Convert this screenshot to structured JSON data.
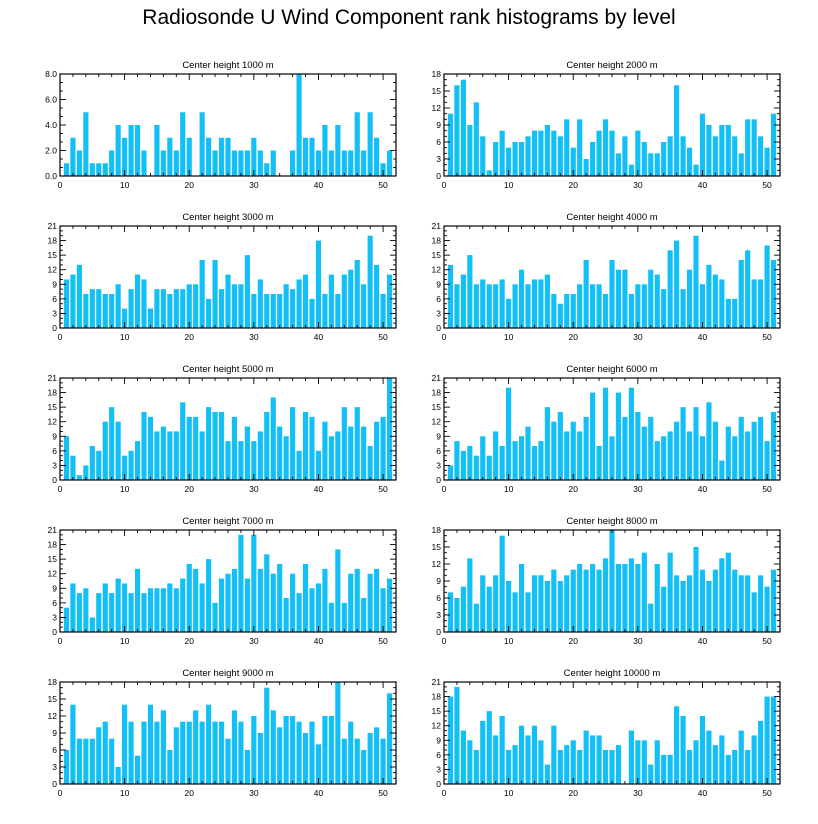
{
  "title": "Radiosonde U Wind Component rank histograms by level",
  "colors": {
    "bar": "#13c0f5",
    "axis": "#000000"
  },
  "chart_data": [
    {
      "type": "bar",
      "title": "Center height 1000 m",
      "x": [
        0,
        1,
        2,
        3,
        4,
        5,
        6,
        7,
        8,
        9,
        10,
        11,
        12,
        13,
        14,
        15,
        16,
        17,
        18,
        19,
        20,
        21,
        22,
        23,
        24,
        25,
        26,
        27,
        28,
        29,
        30,
        31,
        32,
        33,
        34,
        35,
        36,
        37,
        38,
        39,
        40,
        41,
        42,
        43,
        44,
        45,
        46,
        47,
        48,
        49,
        50,
        51
      ],
      "values": [
        0,
        1,
        3,
        2,
        5,
        1,
        1,
        1,
        2,
        4,
        3,
        4,
        4,
        2,
        0,
        4,
        2,
        3,
        2,
        5,
        3,
        0,
        5,
        3,
        2,
        3,
        3,
        2,
        2,
        2,
        3,
        2,
        1,
        2,
        0,
        0,
        2,
        8,
        3,
        3,
        2,
        4,
        2,
        4,
        2,
        2,
        5,
        2,
        5,
        3,
        1,
        2
      ],
      "xlim": [
        0,
        52
      ],
      "ylim": [
        0,
        8
      ],
      "xticks": [
        "0",
        "10",
        "20",
        "30",
        "40",
        "50"
      ],
      "yticks": [
        "0.0",
        "2.0",
        "4.0",
        "6.0",
        "8.0"
      ]
    },
    {
      "type": "bar",
      "title": "Center height 2000 m",
      "x": [
        0,
        1,
        2,
        3,
        4,
        5,
        6,
        7,
        8,
        9,
        10,
        11,
        12,
        13,
        14,
        15,
        16,
        17,
        18,
        19,
        20,
        21,
        22,
        23,
        24,
        25,
        26,
        27,
        28,
        29,
        30,
        31,
        32,
        33,
        34,
        35,
        36,
        37,
        38,
        39,
        40,
        41,
        42,
        43,
        44,
        45,
        46,
        47,
        48,
        49,
        50,
        51
      ],
      "values": [
        0,
        11,
        16,
        17,
        9,
        13,
        7,
        1,
        6,
        8,
        5,
        6,
        6,
        7,
        8,
        8,
        9,
        8,
        7,
        10,
        5,
        10,
        3,
        6,
        8,
        10,
        8,
        4,
        7,
        2,
        8,
        6,
        4,
        4,
        6,
        7,
        16,
        7,
        5,
        2,
        11,
        9,
        7,
        9,
        9,
        7,
        4,
        10,
        10,
        7,
        5,
        11
      ],
      "xlim": [
        0,
        52
      ],
      "ylim": [
        0,
        18
      ],
      "xticks": [
        "0",
        "10",
        "20",
        "30",
        "40",
        "50"
      ],
      "yticks": [
        "0",
        "3",
        "6",
        "9",
        "12",
        "15",
        "18"
      ]
    },
    {
      "type": "bar",
      "title": "Center height 3000 m",
      "x": [
        0,
        1,
        2,
        3,
        4,
        5,
        6,
        7,
        8,
        9,
        10,
        11,
        12,
        13,
        14,
        15,
        16,
        17,
        18,
        19,
        20,
        21,
        22,
        23,
        24,
        25,
        26,
        27,
        28,
        29,
        30,
        31,
        32,
        33,
        34,
        35,
        36,
        37,
        38,
        39,
        40,
        41,
        42,
        43,
        44,
        45,
        46,
        47,
        48,
        49,
        50,
        51
      ],
      "values": [
        0,
        10,
        11,
        13,
        7,
        8,
        8,
        7,
        7,
        9,
        4,
        8,
        11,
        10,
        4,
        8,
        8,
        7,
        8,
        8,
        9,
        9,
        14,
        6,
        14,
        8,
        11,
        9,
        9,
        15,
        7,
        10,
        7,
        7,
        7,
        9,
        8,
        10,
        11,
        6,
        18,
        7,
        11,
        7,
        11,
        12,
        14,
        9,
        19,
        13,
        7,
        11
      ],
      "xlim": [
        0,
        52
      ],
      "ylim": [
        0,
        21
      ],
      "xticks": [
        "0",
        "10",
        "20",
        "30",
        "40",
        "50"
      ],
      "yticks": [
        "0",
        "3",
        "6",
        "9",
        "12",
        "15",
        "18",
        "21"
      ]
    },
    {
      "type": "bar",
      "title": "Center height 4000 m",
      "x": [
        0,
        1,
        2,
        3,
        4,
        5,
        6,
        7,
        8,
        9,
        10,
        11,
        12,
        13,
        14,
        15,
        16,
        17,
        18,
        19,
        20,
        21,
        22,
        23,
        24,
        25,
        26,
        27,
        28,
        29,
        30,
        31,
        32,
        33,
        34,
        35,
        36,
        37,
        38,
        39,
        40,
        41,
        42,
        43,
        44,
        45,
        46,
        47,
        48,
        49,
        50,
        51
      ],
      "values": [
        0,
        13,
        9,
        11,
        15,
        9,
        10,
        9,
        9,
        10,
        6,
        9,
        12,
        9,
        10,
        10,
        11,
        7,
        5,
        7,
        7,
        9,
        14,
        9,
        9,
        7,
        14,
        12,
        12,
        7,
        9,
        9,
        12,
        11,
        8,
        16,
        18,
        8,
        12,
        19,
        9,
        13,
        11,
        10,
        6,
        6,
        14,
        16,
        10,
        10,
        17,
        14
      ],
      "xlim": [
        0,
        52
      ],
      "ylim": [
        0,
        21
      ],
      "xticks": [
        "0",
        "10",
        "20",
        "30",
        "40",
        "50"
      ],
      "yticks": [
        "0",
        "3",
        "6",
        "9",
        "12",
        "15",
        "18",
        "21"
      ]
    },
    {
      "type": "bar",
      "title": "Center height 5000 m",
      "x": [
        0,
        1,
        2,
        3,
        4,
        5,
        6,
        7,
        8,
        9,
        10,
        11,
        12,
        13,
        14,
        15,
        16,
        17,
        18,
        19,
        20,
        21,
        22,
        23,
        24,
        25,
        26,
        27,
        28,
        29,
        30,
        31,
        32,
        33,
        34,
        35,
        36,
        37,
        38,
        39,
        40,
        41,
        42,
        43,
        44,
        45,
        46,
        47,
        48,
        49,
        50,
        51
      ],
      "values": [
        0,
        9,
        5,
        1,
        3,
        7,
        6,
        12,
        15,
        12,
        5,
        6,
        8,
        14,
        13,
        10,
        11,
        10,
        10,
        16,
        13,
        13,
        10,
        15,
        14,
        14,
        8,
        13,
        8,
        11,
        8,
        10,
        14,
        17,
        11,
        9,
        15,
        6,
        14,
        13,
        6,
        12,
        9,
        10,
        15,
        11,
        15,
        11,
        7,
        12,
        13,
        21
      ],
      "xlim": [
        0,
        52
      ],
      "ylim": [
        0,
        21
      ],
      "xticks": [
        "0",
        "10",
        "20",
        "30",
        "40",
        "50"
      ],
      "yticks": [
        "0",
        "3",
        "6",
        "9",
        "12",
        "15",
        "18",
        "21"
      ]
    },
    {
      "type": "bar",
      "title": "Center height 6000 m",
      "x": [
        0,
        1,
        2,
        3,
        4,
        5,
        6,
        7,
        8,
        9,
        10,
        11,
        12,
        13,
        14,
        15,
        16,
        17,
        18,
        19,
        20,
        21,
        22,
        23,
        24,
        25,
        26,
        27,
        28,
        29,
        30,
        31,
        32,
        33,
        34,
        35,
        36,
        37,
        38,
        39,
        40,
        41,
        42,
        43,
        44,
        45,
        46,
        47,
        48,
        49,
        50,
        51
      ],
      "values": [
        0,
        3,
        8,
        6,
        7,
        5,
        9,
        5,
        10,
        7,
        19,
        8,
        9,
        11,
        7,
        8,
        15,
        12,
        14,
        10,
        12,
        10,
        13,
        18,
        7,
        19,
        9,
        18,
        13,
        19,
        14,
        11,
        13,
        8,
        9,
        10,
        12,
        15,
        10,
        15,
        9,
        16,
        12,
        4,
        11,
        9,
        13,
        10,
        12,
        13,
        8,
        14
      ],
      "xlim": [
        0,
        52
      ],
      "ylim": [
        0,
        21
      ],
      "xticks": [
        "0",
        "10",
        "20",
        "30",
        "40",
        "50"
      ],
      "yticks": [
        "0",
        "3",
        "6",
        "9",
        "12",
        "15",
        "18",
        "21"
      ]
    },
    {
      "type": "bar",
      "title": "Center height 7000 m",
      "x": [
        0,
        1,
        2,
        3,
        4,
        5,
        6,
        7,
        8,
        9,
        10,
        11,
        12,
        13,
        14,
        15,
        16,
        17,
        18,
        19,
        20,
        21,
        22,
        23,
        24,
        25,
        26,
        27,
        28,
        29,
        30,
        31,
        32,
        33,
        34,
        35,
        36,
        37,
        38,
        39,
        40,
        41,
        42,
        43,
        44,
        45,
        46,
        47,
        48,
        49,
        50,
        51
      ],
      "values": [
        0,
        5,
        10,
        8,
        9,
        3,
        8,
        10,
        8,
        11,
        10,
        8,
        13,
        8,
        9,
        9,
        9,
        10,
        9,
        11,
        14,
        13,
        10,
        15,
        6,
        11,
        12,
        13,
        20,
        11,
        20,
        13,
        16,
        12,
        14,
        7,
        12,
        8,
        14,
        9,
        10,
        13,
        6,
        17,
        6,
        12,
        13,
        7,
        12,
        13,
        9,
        11
      ],
      "xlim": [
        0,
        52
      ],
      "ylim": [
        0,
        21
      ],
      "xticks": [
        "0",
        "10",
        "20",
        "30",
        "40",
        "50"
      ],
      "yticks": [
        "0",
        "3",
        "6",
        "9",
        "12",
        "15",
        "18",
        "21"
      ]
    },
    {
      "type": "bar",
      "title": "Center height 8000 m",
      "x": [
        0,
        1,
        2,
        3,
        4,
        5,
        6,
        7,
        8,
        9,
        10,
        11,
        12,
        13,
        14,
        15,
        16,
        17,
        18,
        19,
        20,
        21,
        22,
        23,
        24,
        25,
        26,
        27,
        28,
        29,
        30,
        31,
        32,
        33,
        34,
        35,
        36,
        37,
        38,
        39,
        40,
        41,
        42,
        43,
        44,
        45,
        46,
        47,
        48,
        49,
        50,
        51
      ],
      "values": [
        0,
        7,
        6,
        8,
        13,
        5,
        10,
        8,
        10,
        17,
        9,
        7,
        12,
        7,
        10,
        10,
        9,
        11,
        9,
        10,
        11,
        12,
        11,
        12,
        11,
        13,
        18,
        12,
        12,
        13,
        12,
        14,
        5,
        12,
        8,
        14,
        10,
        9,
        10,
        15,
        11,
        9,
        11,
        13,
        14,
        11,
        10,
        10,
        7,
        10,
        8,
        11
      ],
      "xlim": [
        0,
        52
      ],
      "ylim": [
        0,
        18
      ],
      "xticks": [
        "0",
        "10",
        "20",
        "30",
        "40",
        "50"
      ],
      "yticks": [
        "0",
        "3",
        "6",
        "9",
        "12",
        "15",
        "18"
      ]
    },
    {
      "type": "bar",
      "title": "Center height 9000 m",
      "x": [
        0,
        1,
        2,
        3,
        4,
        5,
        6,
        7,
        8,
        9,
        10,
        11,
        12,
        13,
        14,
        15,
        16,
        17,
        18,
        19,
        20,
        21,
        22,
        23,
        24,
        25,
        26,
        27,
        28,
        29,
        30,
        31,
        32,
        33,
        34,
        35,
        36,
        37,
        38,
        39,
        40,
        41,
        42,
        43,
        44,
        45,
        46,
        47,
        48,
        49,
        50,
        51
      ],
      "values": [
        0,
        6,
        14,
        8,
        8,
        8,
        10,
        11,
        8,
        3,
        14,
        11,
        5,
        11,
        14,
        11,
        13,
        6,
        10,
        11,
        11,
        13,
        11,
        14,
        11,
        11,
        8,
        13,
        11,
        6,
        12,
        9,
        17,
        13,
        10,
        12,
        12,
        11,
        9,
        11,
        7,
        12,
        12,
        18,
        8,
        11,
        8,
        6,
        9,
        10,
        8,
        16
      ],
      "xlim": [
        0,
        52
      ],
      "ylim": [
        0,
        18
      ],
      "xticks": [
        "0",
        "10",
        "20",
        "30",
        "40",
        "50"
      ],
      "yticks": [
        "0",
        "3",
        "6",
        "9",
        "12",
        "15",
        "18"
      ]
    },
    {
      "type": "bar",
      "title": "Center height 10000 m",
      "x": [
        0,
        1,
        2,
        3,
        4,
        5,
        6,
        7,
        8,
        9,
        10,
        11,
        12,
        13,
        14,
        15,
        16,
        17,
        18,
        19,
        20,
        21,
        22,
        23,
        24,
        25,
        26,
        27,
        28,
        29,
        30,
        31,
        32,
        33,
        34,
        35,
        36,
        37,
        38,
        39,
        40,
        41,
        42,
        43,
        44,
        45,
        46,
        47,
        48,
        49,
        50,
        51
      ],
      "values": [
        0,
        18,
        20,
        11,
        9,
        7,
        13,
        15,
        10,
        14,
        7,
        8,
        12,
        10,
        12,
        9,
        4,
        12,
        7,
        8,
        9,
        7,
        11,
        10,
        10,
        7,
        7,
        8,
        0,
        11,
        9,
        9,
        4,
        9,
        6,
        6,
        16,
        14,
        7,
        9,
        14,
        11,
        8,
        10,
        6,
        7,
        11,
        7,
        10,
        13,
        18,
        18
      ],
      "xlim": [
        0,
        52
      ],
      "ylim": [
        0,
        21
      ],
      "xticks": [
        "0",
        "10",
        "20",
        "30",
        "40",
        "50"
      ],
      "yticks": [
        "0",
        "3",
        "6",
        "9",
        "12",
        "15",
        "18",
        "21"
      ]
    }
  ]
}
